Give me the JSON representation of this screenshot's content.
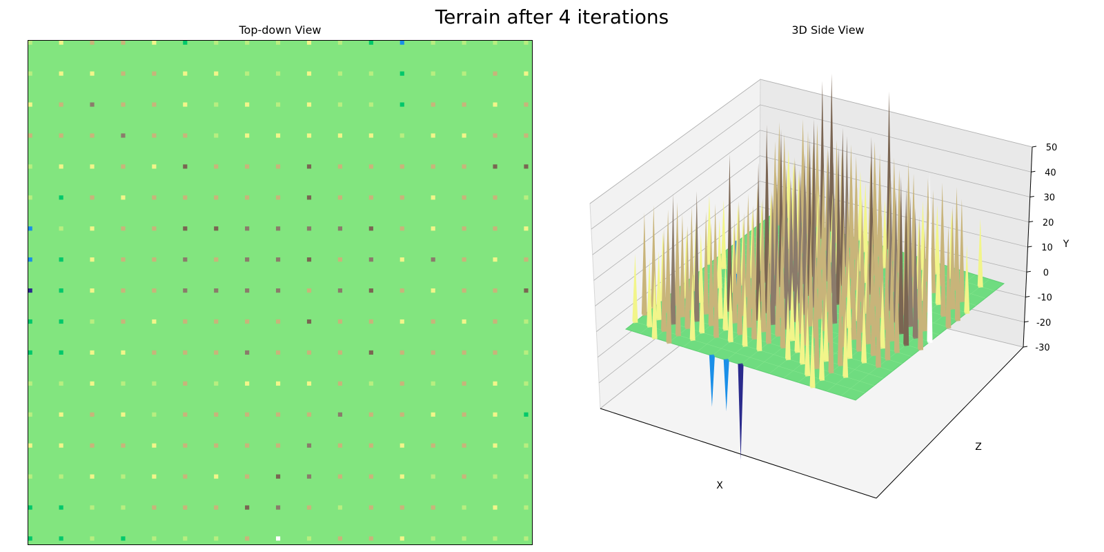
{
  "title": "Terrain after 4 iterations",
  "chart_data": [
    {
      "type": "heatmap",
      "title": "Top-down View",
      "grid_size": 65,
      "base_height": 0,
      "colormap": "terrain",
      "color_range": [
        -30,
        50
      ],
      "colors": {
        "flat": "#82e57f",
        "bright": "#f2f58a",
        "tan": "#c8b47a",
        "brown": "#8b7b6b",
        "dark_brown": "#7a6552",
        "lime": "#b8ee80",
        "sea_green": "#00c86a",
        "blue": "#1a8fe8",
        "navy": "#2a2a8c",
        "white": "#ffffff"
      },
      "spike_spacing": 4,
      "spike_rows": [
        [
          "lime",
          "bright",
          "tan",
          "tan",
          "bright",
          "sea_green",
          "lime",
          "lime",
          "lime",
          "bright",
          "lime",
          "sea_green",
          "blue",
          "lime",
          "lime",
          "lime",
          "lime"
        ],
        [
          "lime",
          "bright",
          "bright",
          "tan",
          "tan",
          "bright",
          "bright",
          "lime",
          "lime",
          "bright",
          "lime",
          "lime",
          "sea_green",
          "lime",
          "lime",
          "tan",
          "bright"
        ],
        [
          "bright",
          "tan",
          "brown",
          "tan",
          "tan",
          "bright",
          "lime",
          "bright",
          "lime",
          "bright",
          "lime",
          "lime",
          "sea_green",
          "tan",
          "tan",
          "bright",
          "tan"
        ],
        [
          "tan",
          "tan",
          "tan",
          "brown",
          "tan",
          "tan",
          "lime",
          "bright",
          "bright",
          "bright",
          "bright",
          "bright",
          "lime",
          "bright",
          "bright",
          "tan",
          "tan"
        ],
        [
          "lime",
          "bright",
          "bright",
          "tan",
          "bright",
          "dark_brown",
          "tan",
          "tan",
          "tan",
          "dark_brown",
          "tan",
          "tan",
          "tan",
          "tan",
          "tan",
          "dark_brown",
          "dark_brown"
        ],
        [
          "lime",
          "sea_green",
          "tan",
          "bright",
          "tan",
          "tan",
          "tan",
          "tan",
          "tan",
          "dark_brown",
          "tan",
          "tan",
          "tan",
          "bright",
          "tan",
          "tan",
          "lime"
        ],
        [
          "blue",
          "lime",
          "bright",
          "tan",
          "tan",
          "dark_brown",
          "dark_brown",
          "brown",
          "brown",
          "brown",
          "brown",
          "dark_brown",
          "tan",
          "bright",
          "tan",
          "tan",
          "bright"
        ],
        [
          "blue",
          "sea_green",
          "bright",
          "tan",
          "tan",
          "brown",
          "tan",
          "brown",
          "brown",
          "dark_brown",
          "tan",
          "brown",
          "bright",
          "brown",
          "tan",
          "bright",
          "tan"
        ],
        [
          "navy",
          "sea_green",
          "bright",
          "tan",
          "tan",
          "brown",
          "brown",
          "brown",
          "brown",
          "tan",
          "brown",
          "dark_brown",
          "tan",
          "bright",
          "tan",
          "tan",
          "dark_brown"
        ],
        [
          "sea_green",
          "sea_green",
          "lime",
          "tan",
          "bright",
          "tan",
          "tan",
          "tan",
          "tan",
          "dark_brown",
          "tan",
          "tan",
          "bright",
          "tan",
          "bright",
          "tan",
          "lime"
        ],
        [
          "sea_green",
          "sea_green",
          "bright",
          "bright",
          "tan",
          "tan",
          "tan",
          "brown",
          "tan",
          "tan",
          "tan",
          "dark_brown",
          "tan",
          "tan",
          "tan",
          "tan",
          "lime"
        ],
        [
          "lime",
          "lime",
          "bright",
          "lime",
          "lime",
          "tan",
          "lime",
          "bright",
          "bright",
          "bright",
          "tan",
          "lime",
          "tan",
          "lime",
          "tan",
          "bright",
          "lime"
        ],
        [
          "lime",
          "bright",
          "tan",
          "bright",
          "lime",
          "tan",
          "tan",
          "tan",
          "tan",
          "tan",
          "brown",
          "tan",
          "tan",
          "bright",
          "tan",
          "bright",
          "sea_green"
        ],
        [
          "bright",
          "bright",
          "tan",
          "tan",
          "bright",
          "tan",
          "tan",
          "tan",
          "tan",
          "brown",
          "tan",
          "tan",
          "bright",
          "tan",
          "tan",
          "bright",
          "lime"
        ],
        [
          "lime",
          "lime",
          "bright",
          "lime",
          "bright",
          "tan",
          "bright",
          "tan",
          "dark_brown",
          "brown",
          "tan",
          "tan",
          "bright",
          "lime",
          "tan",
          "lime",
          "lime"
        ],
        [
          "sea_green",
          "sea_green",
          "lime",
          "lime",
          "tan",
          "tan",
          "tan",
          "dark_brown",
          "brown",
          "tan",
          "lime",
          "tan",
          "tan",
          "tan",
          "lime",
          "bright",
          "lime"
        ],
        [
          "sea_green",
          "sea_green",
          "lime",
          "sea_green",
          "lime",
          "lime",
          "lime",
          "tan",
          "white",
          "lime",
          "tan",
          "tan",
          "bright",
          "lime",
          "lime",
          "lime",
          "lime"
        ]
      ],
      "color_values": {
        "lime": 12,
        "bright": 20,
        "tan": 30,
        "brown": 38,
        "dark_brown": 46,
        "sea_green": -4,
        "blue": -15,
        "navy": -28,
        "white": 50
      }
    },
    {
      "type": "surface",
      "title": "3D Side View",
      "xlabel": "X",
      "ylabel": "Z",
      "zlabel": "Y",
      "zlim": [
        -30,
        50
      ],
      "zticks": [
        -30,
        -20,
        -10,
        0,
        10,
        20,
        30,
        40,
        50
      ]
    }
  ]
}
